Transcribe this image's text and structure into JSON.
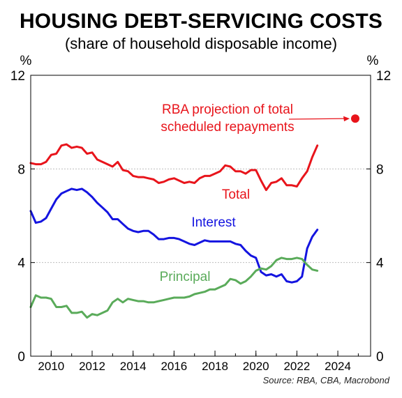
{
  "title": "HOUSING DEBT-SERVICING COSTS",
  "subtitle": "(share of household disposable income)",
  "source": "Source: RBA, CBA, Macrobond",
  "chart_data": {
    "type": "line",
    "ylim": [
      0,
      12
    ],
    "xlim": [
      2009,
      2025.6
    ],
    "y_ticks": [
      0,
      4,
      8,
      12
    ],
    "x_ticks": [
      2010,
      2012,
      2014,
      2016,
      2018,
      2020,
      2022,
      2024
    ],
    "y_unit_left": "%",
    "y_unit_right": "%",
    "grid": true,
    "series": [
      {
        "name": "Total",
        "color": "#e8141b",
        "x": [
          2009.0,
          2009.25,
          2009.5,
          2009.75,
          2010.0,
          2010.25,
          2010.5,
          2010.75,
          2011.0,
          2011.25,
          2011.5,
          2011.75,
          2012.0,
          2012.25,
          2012.5,
          2012.75,
          2013.0,
          2013.25,
          2013.5,
          2013.75,
          2014.0,
          2014.25,
          2014.5,
          2014.75,
          2015.0,
          2015.25,
          2015.5,
          2015.75,
          2016.0,
          2016.25,
          2016.5,
          2016.75,
          2017.0,
          2017.25,
          2017.5,
          2017.75,
          2018.0,
          2018.25,
          2018.5,
          2018.75,
          2019.0,
          2019.25,
          2019.5,
          2019.75,
          2020.0,
          2020.25,
          2020.5,
          2020.75,
          2021.0,
          2021.25,
          2021.5,
          2021.75,
          2022.0,
          2022.25,
          2022.5,
          2022.75,
          2023.0
        ],
        "values": [
          8.25,
          8.2,
          8.2,
          8.3,
          8.6,
          8.65,
          9.0,
          9.05,
          8.9,
          8.95,
          8.9,
          8.65,
          8.7,
          8.4,
          8.3,
          8.2,
          8.1,
          8.3,
          7.95,
          7.9,
          7.7,
          7.65,
          7.65,
          7.6,
          7.55,
          7.4,
          7.45,
          7.55,
          7.6,
          7.5,
          7.4,
          7.45,
          7.4,
          7.6,
          7.7,
          7.7,
          7.8,
          7.9,
          8.15,
          8.1,
          7.9,
          7.9,
          7.8,
          7.95,
          7.95,
          7.5,
          7.1,
          7.4,
          7.45,
          7.6,
          7.3,
          7.3,
          7.25,
          7.6,
          7.9,
          8.5,
          9.0
        ]
      },
      {
        "name": "Interest",
        "color": "#1414e0",
        "x": [
          2009.0,
          2009.25,
          2009.5,
          2009.75,
          2010.0,
          2010.25,
          2010.5,
          2010.75,
          2011.0,
          2011.25,
          2011.5,
          2011.75,
          2012.0,
          2012.25,
          2012.5,
          2012.75,
          2013.0,
          2013.25,
          2013.5,
          2013.75,
          2014.0,
          2014.25,
          2014.5,
          2014.75,
          2015.0,
          2015.25,
          2015.5,
          2015.75,
          2016.0,
          2016.25,
          2016.5,
          2016.75,
          2017.0,
          2017.25,
          2017.5,
          2017.75,
          2018.0,
          2018.25,
          2018.5,
          2018.75,
          2019.0,
          2019.25,
          2019.5,
          2019.75,
          2020.0,
          2020.25,
          2020.5,
          2020.75,
          2021.0,
          2021.25,
          2021.5,
          2021.75,
          2022.0,
          2022.25,
          2022.5,
          2022.75,
          2023.0
        ],
        "values": [
          6.2,
          5.7,
          5.75,
          5.9,
          6.3,
          6.7,
          6.95,
          7.05,
          7.15,
          7.1,
          7.15,
          7.0,
          6.8,
          6.55,
          6.35,
          6.15,
          5.85,
          5.85,
          5.65,
          5.45,
          5.35,
          5.3,
          5.35,
          5.35,
          5.2,
          5.0,
          5.0,
          5.05,
          5.05,
          5.0,
          4.9,
          4.8,
          4.75,
          4.85,
          4.95,
          4.9,
          4.9,
          4.9,
          4.9,
          4.9,
          4.8,
          4.75,
          4.5,
          4.3,
          4.2,
          3.6,
          3.45,
          3.5,
          3.4,
          3.5,
          3.2,
          3.15,
          3.2,
          3.4,
          4.6,
          5.1,
          5.4
        ]
      },
      {
        "name": "Principal",
        "color": "#5aab5a",
        "x": [
          2009.0,
          2009.25,
          2009.5,
          2009.75,
          2010.0,
          2010.25,
          2010.5,
          2010.75,
          2011.0,
          2011.25,
          2011.5,
          2011.75,
          2012.0,
          2012.25,
          2012.5,
          2012.75,
          2013.0,
          2013.25,
          2013.5,
          2013.75,
          2014.0,
          2014.25,
          2014.5,
          2014.75,
          2015.0,
          2015.25,
          2015.5,
          2015.75,
          2016.0,
          2016.25,
          2016.5,
          2016.75,
          2017.0,
          2017.25,
          2017.5,
          2017.75,
          2018.0,
          2018.25,
          2018.5,
          2018.75,
          2019.0,
          2019.25,
          2019.5,
          2019.75,
          2020.0,
          2020.25,
          2020.5,
          2020.75,
          2021.0,
          2021.25,
          2021.5,
          2021.75,
          2022.0,
          2022.25,
          2022.5,
          2022.75,
          2023.0
        ],
        "values": [
          2.1,
          2.6,
          2.5,
          2.5,
          2.45,
          2.1,
          2.1,
          2.15,
          1.85,
          1.85,
          1.9,
          1.65,
          1.8,
          1.75,
          1.85,
          1.95,
          2.3,
          2.45,
          2.3,
          2.45,
          2.4,
          2.35,
          2.35,
          2.3,
          2.3,
          2.35,
          2.4,
          2.45,
          2.5,
          2.5,
          2.5,
          2.55,
          2.65,
          2.7,
          2.75,
          2.85,
          2.85,
          2.95,
          3.05,
          3.3,
          3.25,
          3.1,
          3.2,
          3.4,
          3.65,
          3.75,
          3.7,
          3.85,
          4.1,
          4.2,
          4.15,
          4.15,
          4.2,
          4.15,
          3.9,
          3.7,
          3.65
        ]
      }
    ],
    "projection": {
      "x": 2024.85,
      "value": 10.15,
      "color": "#e8141b"
    },
    "labels": {
      "total": "Total",
      "interest": "Interest",
      "principal": "Principal",
      "projection_line1": "RBA projection of total",
      "projection_line2": "scheduled repayments"
    }
  }
}
